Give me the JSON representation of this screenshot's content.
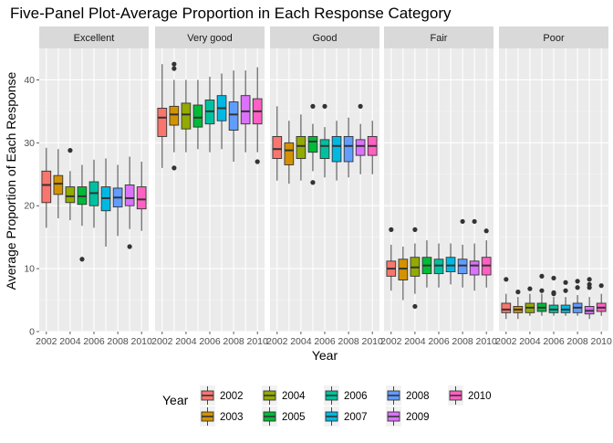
{
  "chart_data": {
    "type": "box",
    "title": "Five-Panel Plot-Average Proportion in Each Response Category",
    "xlabel": "Year",
    "ylabel": "Average Proportion of Each Response",
    "ylim": [
      0,
      45
    ],
    "yticks": [
      0,
      10,
      20,
      30,
      40
    ],
    "xticks": [
      "2002",
      "2004",
      "2006",
      "2008",
      "2010"
    ],
    "legend_position": "bottom",
    "legend_title": "Year",
    "years": [
      "2002",
      "2003",
      "2004",
      "2005",
      "2006",
      "2007",
      "2008",
      "2009",
      "2010"
    ],
    "colors": [
      "#F8766D",
      "#D39200",
      "#93AA00",
      "#00BA38",
      "#00C19F",
      "#00B9E3",
      "#619CFF",
      "#DB72FB",
      "#FF61C3"
    ],
    "panels": [
      {
        "name": "Excellent",
        "boxes": [
          {
            "year": "2002",
            "min": 16.5,
            "q1": 20.5,
            "median": 23.3,
            "q3": 25.5,
            "max": 29.2,
            "outliers": []
          },
          {
            "year": "2003",
            "min": 18.0,
            "q1": 21.8,
            "median": 23.5,
            "q3": 24.8,
            "max": 29.0,
            "outliers": []
          },
          {
            "year": "2004",
            "min": 17.7,
            "q1": 20.5,
            "median": 21.5,
            "q3": 23.0,
            "max": 25.5,
            "outliers": [
              28.8
            ]
          },
          {
            "year": "2005",
            "min": 16.8,
            "q1": 20.2,
            "median": 21.5,
            "q3": 23.0,
            "max": 26.5,
            "outliers": [
              11.5
            ]
          },
          {
            "year": "2006",
            "min": 16.5,
            "q1": 20.0,
            "median": 22.0,
            "q3": 23.8,
            "max": 27.3,
            "outliers": []
          },
          {
            "year": "2007",
            "min": 13.5,
            "q1": 19.2,
            "median": 21.2,
            "q3": 23.0,
            "max": 27.5,
            "outliers": []
          },
          {
            "year": "2008",
            "min": 15.2,
            "q1": 19.8,
            "median": 21.3,
            "q3": 22.8,
            "max": 26.5,
            "outliers": []
          },
          {
            "year": "2009",
            "min": 16.3,
            "q1": 20.0,
            "median": 21.2,
            "q3": 23.3,
            "max": 27.8,
            "outliers": [
              13.5
            ]
          },
          {
            "year": "2010",
            "min": 16.0,
            "q1": 19.5,
            "median": 21.0,
            "q3": 23.0,
            "max": 27.0,
            "outliers": []
          }
        ]
      },
      {
        "name": "Very good",
        "boxes": [
          {
            "year": "2002",
            "min": 26.0,
            "q1": 31.0,
            "median": 34.0,
            "q3": 35.5,
            "max": 42.5,
            "outliers": []
          },
          {
            "year": "2003",
            "min": 28.5,
            "q1": 32.8,
            "median": 34.5,
            "q3": 35.8,
            "max": 40.0,
            "outliers": [
              42.5,
              41.8,
              26.0
            ]
          },
          {
            "year": "2004",
            "min": 28.5,
            "q1": 32.2,
            "median": 34.5,
            "q3": 36.3,
            "max": 40.0,
            "outliers": []
          },
          {
            "year": "2005",
            "min": 29.0,
            "q1": 32.5,
            "median": 34.0,
            "q3": 36.0,
            "max": 40.0,
            "outliers": []
          },
          {
            "year": "2006",
            "min": 28.5,
            "q1": 33.0,
            "median": 35.0,
            "q3": 36.8,
            "max": 40.5,
            "outliers": []
          },
          {
            "year": "2007",
            "min": 29.0,
            "q1": 33.5,
            "median": 35.5,
            "q3": 37.5,
            "max": 41.0,
            "outliers": []
          },
          {
            "year": "2008",
            "min": 27.0,
            "q1": 32.0,
            "median": 34.5,
            "q3": 36.5,
            "max": 41.5,
            "outliers": []
          },
          {
            "year": "2009",
            "min": 28.5,
            "q1": 33.0,
            "median": 35.0,
            "q3": 37.5,
            "max": 41.5,
            "outliers": []
          },
          {
            "year": "2010",
            "min": 28.5,
            "q1": 33.0,
            "median": 35.0,
            "q3": 37.0,
            "max": 42.0,
            "outliers": [
              27.0
            ]
          }
        ]
      },
      {
        "name": "Good",
        "boxes": [
          {
            "year": "2002",
            "min": 24.0,
            "q1": 27.5,
            "median": 29.0,
            "q3": 31.0,
            "max": 35.8,
            "outliers": []
          },
          {
            "year": "2003",
            "min": 23.5,
            "q1": 26.5,
            "median": 28.8,
            "q3": 30.0,
            "max": 33.5,
            "outliers": []
          },
          {
            "year": "2004",
            "min": 24.0,
            "q1": 27.5,
            "median": 29.5,
            "q3": 31.0,
            "max": 34.5,
            "outliers": []
          },
          {
            "year": "2005",
            "min": 25.5,
            "q1": 28.5,
            "median": 30.2,
            "q3": 31.0,
            "max": 33.0,
            "outliers": [
              35.8,
              23.7
            ]
          },
          {
            "year": "2006",
            "min": 24.5,
            "q1": 27.5,
            "median": 29.5,
            "q3": 30.5,
            "max": 32.5,
            "outliers": [
              35.8
            ]
          },
          {
            "year": "2007",
            "min": 24.0,
            "q1": 27.0,
            "median": 29.5,
            "q3": 31.0,
            "max": 33.5,
            "outliers": []
          },
          {
            "year": "2008",
            "min": 24.5,
            "q1": 27.0,
            "median": 29.5,
            "q3": 31.0,
            "max": 34.0,
            "outliers": []
          },
          {
            "year": "2009",
            "min": 25.0,
            "q1": 28.0,
            "median": 29.5,
            "q3": 30.5,
            "max": 33.0,
            "outliers": [
              35.8
            ]
          },
          {
            "year": "2010",
            "min": 25.0,
            "q1": 28.0,
            "median": 29.5,
            "q3": 31.0,
            "max": 33.5,
            "outliers": []
          }
        ]
      },
      {
        "name": "Fair",
        "boxes": [
          {
            "year": "2002",
            "min": 6.5,
            "q1": 8.8,
            "median": 10.0,
            "q3": 11.2,
            "max": 13.8,
            "outliers": [
              16.2
            ]
          },
          {
            "year": "2003",
            "min": 5.0,
            "q1": 8.2,
            "median": 10.0,
            "q3": 11.5,
            "max": 13.5,
            "outliers": []
          },
          {
            "year": "2004",
            "min": 6.0,
            "q1": 8.8,
            "median": 10.2,
            "q3": 11.8,
            "max": 14.0,
            "outliers": [
              16.2,
              4.0
            ]
          },
          {
            "year": "2005",
            "min": 7.0,
            "q1": 9.2,
            "median": 10.5,
            "q3": 11.8,
            "max": 14.5,
            "outliers": []
          },
          {
            "year": "2006",
            "min": 7.0,
            "q1": 9.2,
            "median": 10.5,
            "q3": 11.5,
            "max": 14.0,
            "outliers": []
          },
          {
            "year": "2007",
            "min": 7.5,
            "q1": 9.5,
            "median": 10.5,
            "q3": 11.8,
            "max": 14.0,
            "outliers": []
          },
          {
            "year": "2008",
            "min": 7.0,
            "q1": 9.2,
            "median": 10.5,
            "q3": 11.5,
            "max": 13.8,
            "outliers": [
              17.5
            ]
          },
          {
            "year": "2009",
            "min": 6.5,
            "q1": 9.0,
            "median": 10.5,
            "q3": 11.2,
            "max": 14.0,
            "outliers": [
              17.5
            ]
          },
          {
            "year": "2010",
            "min": 7.0,
            "q1": 9.0,
            "median": 10.5,
            "q3": 11.8,
            "max": 14.5,
            "outliers": [
              16.0
            ]
          }
        ]
      },
      {
        "name": "Poor",
        "boxes": [
          {
            "year": "2002",
            "min": 2.0,
            "q1": 3.0,
            "median": 3.5,
            "q3": 4.5,
            "max": 6.0,
            "outliers": [
              8.3
            ]
          },
          {
            "year": "2003",
            "min": 2.0,
            "q1": 3.0,
            "median": 3.5,
            "q3": 4.0,
            "max": 5.5,
            "outliers": [
              6.3
            ]
          },
          {
            "year": "2004",
            "min": 2.5,
            "q1": 3.0,
            "median": 3.8,
            "q3": 4.5,
            "max": 6.0,
            "outliers": [
              6.8
            ]
          },
          {
            "year": "2005",
            "min": 2.5,
            "q1": 3.2,
            "median": 3.8,
            "q3": 4.5,
            "max": 6.0,
            "outliers": [
              8.8,
              6.5
            ]
          },
          {
            "year": "2006",
            "min": 2.5,
            "q1": 3.0,
            "median": 3.5,
            "q3": 4.2,
            "max": 5.5,
            "outliers": [
              8.5,
              6.2,
              6.0
            ]
          },
          {
            "year": "2007",
            "min": 2.5,
            "q1": 3.0,
            "median": 3.5,
            "q3": 4.2,
            "max": 5.5,
            "outliers": [
              7.8,
              6.5
            ]
          },
          {
            "year": "2008",
            "min": 2.5,
            "q1": 3.0,
            "median": 3.8,
            "q3": 4.5,
            "max": 5.8,
            "outliers": [
              8.0,
              7.0
            ]
          },
          {
            "year": "2009",
            "min": 2.0,
            "q1": 2.8,
            "median": 3.3,
            "q3": 4.0,
            "max": 5.5,
            "outliers": [
              8.3,
              7.5,
              7.0
            ]
          },
          {
            "year": "2010",
            "min": 2.5,
            "q1": 3.2,
            "median": 3.8,
            "q3": 4.5,
            "max": 6.0,
            "outliers": [
              7.3
            ]
          }
        ]
      }
    ]
  }
}
